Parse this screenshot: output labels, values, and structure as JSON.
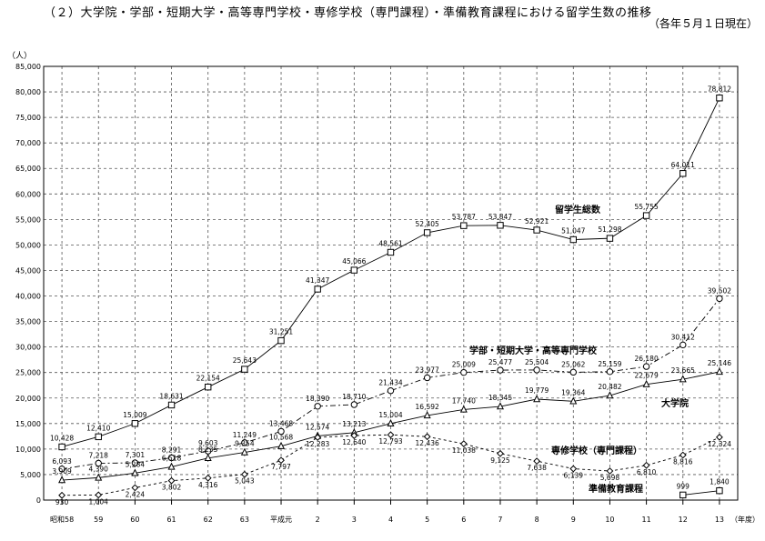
{
  "header": {
    "title": "（２）大学院・学部・短期大学・高等専門学校・専修学校（専門課程）・準備教育課程における留学生数の推移",
    "subtitle": "（各年５月１日現在）"
  },
  "chart_data": {
    "type": "line",
    "title": "（２）大学院・学部・短期大学・高等専門学校・専修学校（専門課程）・準備教育課程における留学生数の推移",
    "subtitle": "（各年５月１日現在）",
    "ylabel": "（人）",
    "xlabel": "（年度）",
    "ylim": [
      0,
      85000
    ],
    "yticks": [
      "0",
      "5,000",
      "10,000",
      "15,000",
      "20,000",
      "25,000",
      "30,000",
      "35,000",
      "40,000",
      "45,000",
      "50,000",
      "55,000",
      "60,000",
      "65,000",
      "70,000",
      "75,000",
      "80,000",
      "85,000"
    ],
    "categories": [
      "昭和58",
      "59",
      "60",
      "61",
      "62",
      "63",
      "平成元",
      "2",
      "3",
      "4",
      "5",
      "6",
      "7",
      "8",
      "9",
      "10",
      "11",
      "12",
      "13"
    ],
    "grid": true,
    "series": [
      {
        "name": "留学生総数",
        "color": "#000000",
        "marker": "square",
        "values": [
          10428,
          12410,
          15009,
          18631,
          22154,
          25643,
          31251,
          41347,
          45066,
          48561,
          52405,
          53787,
          53847,
          52921,
          51047,
          51298,
          55755,
          64011,
          78812
        ],
        "labels": [
          "10,428",
          "12,410",
          "15,009",
          "18,631",
          "22,154",
          "25,643",
          "31,251",
          "41,347",
          "45,066",
          "48,561",
          "52,405",
          "53,787",
          "53,847",
          "52,921",
          "51,047",
          "51,298",
          "55,755",
          "64,011",
          "78,812"
        ]
      },
      {
        "name": "学部・短期大学・高等専門学校",
        "color": "#000000",
        "marker": "circle",
        "values": [
          6093,
          7218,
          7301,
          8291,
          9603,
          11249,
          13468,
          18390,
          18710,
          21434,
          23977,
          25009,
          25477,
          25504,
          25062,
          25159,
          26180,
          30412,
          39502
        ],
        "labels": [
          "6,093",
          "7,218",
          "7,301",
          "8,291",
          "9,603",
          "11,249",
          "13,468",
          "18,390",
          "18,710",
          "21,434",
          "23,977",
          "25,009",
          "25,477",
          "25,504",
          "25,062",
          "25,159",
          "26,180",
          "30,412",
          "39,502"
        ]
      },
      {
        "name": "大学院",
        "color": "#000000",
        "marker": "triangle",
        "values": [
          3909,
          4390,
          5284,
          6518,
          8235,
          9354,
          10568,
          12574,
          13213,
          15004,
          16592,
          17740,
          18345,
          19779,
          19364,
          20482,
          22679,
          23665,
          25146
        ],
        "labels": [
          "3,909",
          "4,390",
          "5,284",
          "6,518",
          "8,235",
          "9,354",
          "10,568",
          "12,574",
          "13,213",
          "15,004",
          "16,592",
          "17,740",
          "18,345",
          "19,779",
          "19,364",
          "20,482",
          "22,679",
          "23,665",
          "25,146"
        ]
      },
      {
        "name": "専修学校（専門課程）",
        "color": "#000000",
        "marker": "diamond",
        "values": [
          930,
          1004,
          2424,
          3802,
          4316,
          5043,
          7797,
          12283,
          12640,
          12793,
          12436,
          11038,
          9125,
          7638,
          6139,
          5698,
          6810,
          8816,
          12324
        ],
        "labels": [
          "930",
          "1,004",
          "2,424",
          "3,802",
          "4,316",
          "5,043",
          "7,797",
          "12,283",
          "12,640",
          "12,793",
          "12,436",
          "11,038",
          "9,125",
          "7,638",
          "6,139",
          "5,698",
          "6,810",
          "8,816",
          "12,324"
        ]
      },
      {
        "name": "準備教育課程",
        "color": "#000000",
        "marker": "square",
        "values": [
          null,
          null,
          null,
          null,
          null,
          null,
          null,
          null,
          null,
          null,
          null,
          null,
          null,
          null,
          null,
          null,
          null,
          999,
          1840
        ],
        "labels": [
          "",
          "",
          "",
          "",
          "",
          "",
          "",
          "",
          "",
          "",
          "",
          "",
          "",
          "",
          "",
          "",
          "",
          "999",
          "1,840"
        ]
      }
    ]
  }
}
